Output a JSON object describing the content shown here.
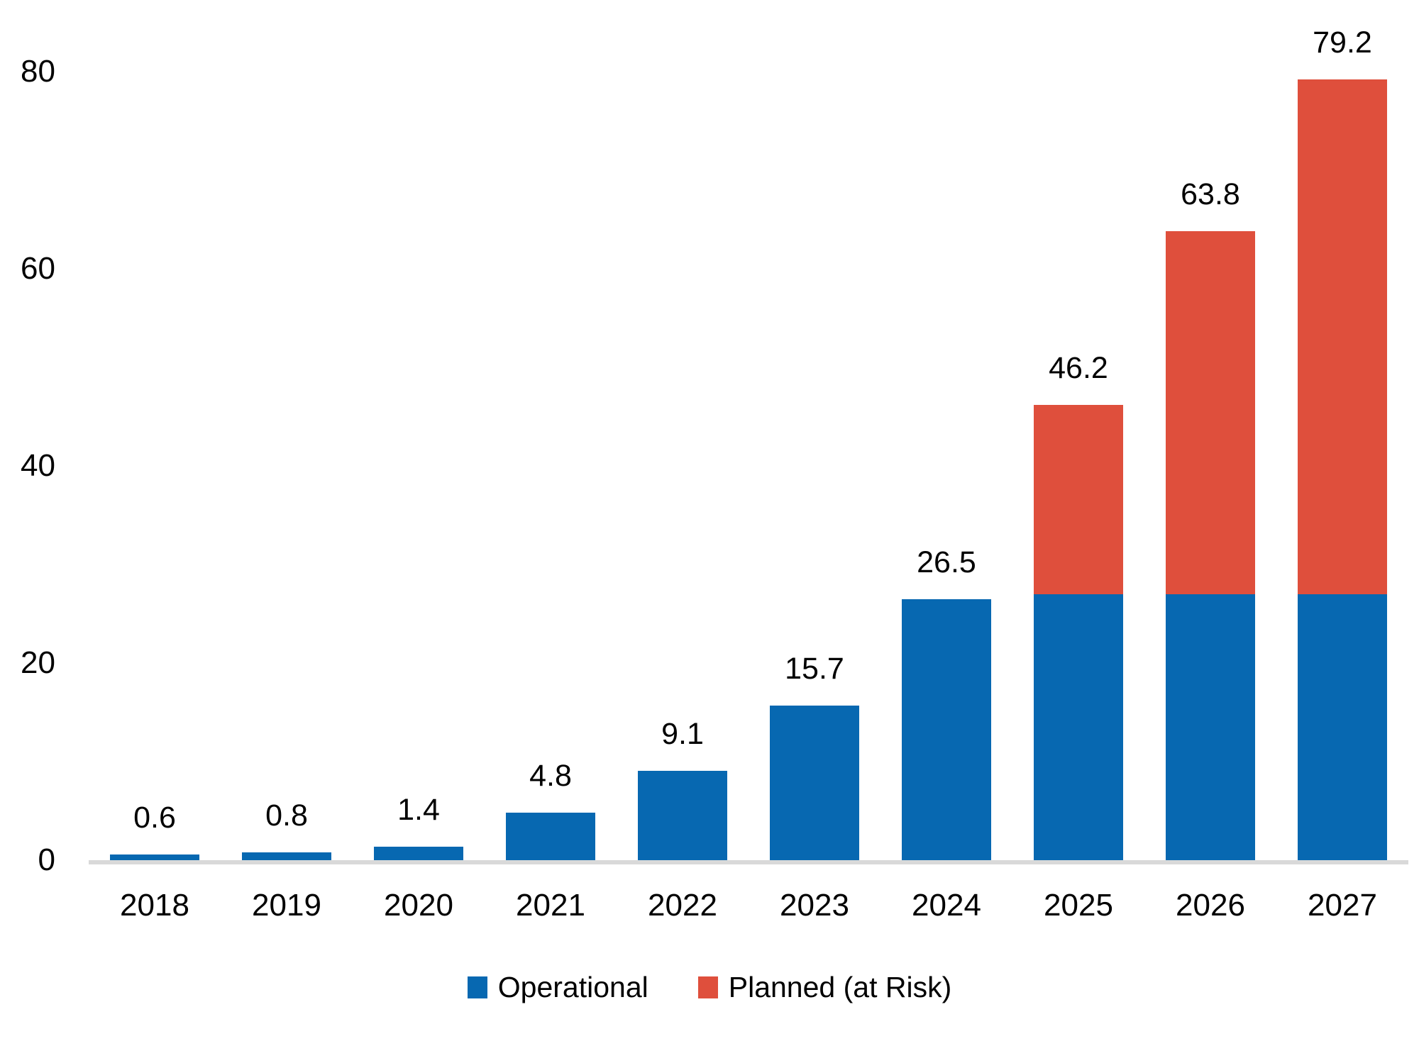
{
  "chart_data": {
    "type": "bar",
    "stacked": true,
    "title": "",
    "xlabel": "",
    "ylabel": "",
    "categories": [
      "2018",
      "2019",
      "2020",
      "2021",
      "2022",
      "2023",
      "2024",
      "2025",
      "2026",
      "2027"
    ],
    "series": [
      {
        "name": "Operational",
        "color": "#0768B1",
        "values": [
          0.6,
          0.8,
          1.4,
          4.8,
          9.1,
          15.7,
          26.5,
          27.0,
          27.0,
          27.0
        ]
      },
      {
        "name": "Planned (at Risk)",
        "color": "#DF4F3C",
        "values": [
          0,
          0,
          0,
          0,
          0,
          0,
          0,
          19.2,
          36.8,
          52.2
        ]
      }
    ],
    "total_labels": [
      "0.6",
      "0.8",
      "1.4",
      "4.8",
      "9.1",
      "15.7",
      "26.5",
      "46.2",
      "63.8",
      "79.2"
    ],
    "ylim": [
      0,
      80
    ],
    "yticks": [
      "0",
      "20",
      "40",
      "60",
      "80"
    ],
    "grid": false,
    "legend_position": "bottom",
    "axis_line_color": "#D9D9D9",
    "label_color": "#000000",
    "background": "#FFFFFF"
  }
}
